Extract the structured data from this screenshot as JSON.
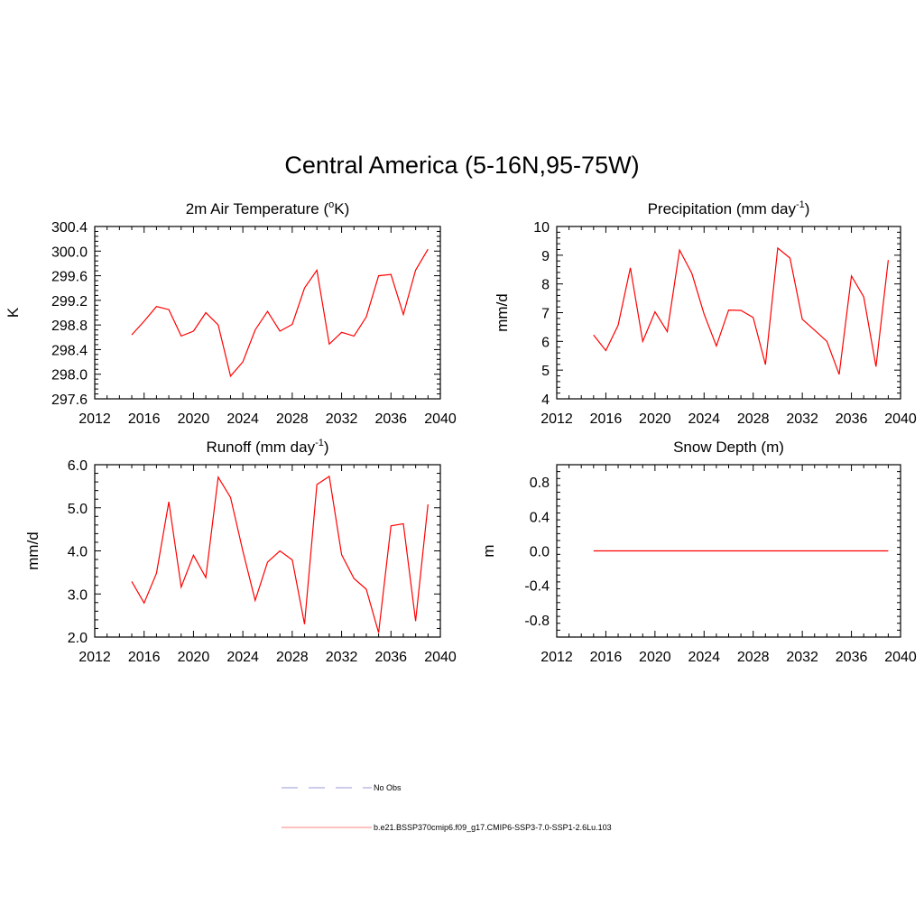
{
  "figure": {
    "title": "Central America (5-16N,95-75W)"
  },
  "legend": {
    "items": [
      {
        "label": "No Obs",
        "style": "dashed",
        "color": "#9a9ad8"
      },
      {
        "label": "b.e21.BSSP370cmip6.f09_g17.CMIP6-SSP3-7.0-SSP1-2.6Lu.103",
        "style": "solid",
        "color": "#ff0000"
      }
    ]
  },
  "colors": {
    "series": "#ff0000",
    "axis": "#000000"
  },
  "chart_data": [
    {
      "type": "line",
      "title": "2m Air Temperature (°K)",
      "ylabel": "K",
      "xlim": [
        2012,
        2040
      ],
      "ylim": [
        297.6,
        300.4
      ],
      "xticks": [
        "2012",
        "2016",
        "2020",
        "2024",
        "2028",
        "2032",
        "2036",
        "2040"
      ],
      "yticks": [
        "297.6",
        "298.0",
        "298.4",
        "298.8",
        "299.2",
        "299.6",
        "300.0",
        "300.4"
      ],
      "x": [
        2015,
        2016,
        2017,
        2018,
        2019,
        2020,
        2021,
        2022,
        2023,
        2024,
        2025,
        2026,
        2027,
        2028,
        2029,
        2030,
        2031,
        2032,
        2033,
        2034,
        2035,
        2036,
        2037,
        2038,
        2039
      ],
      "series": [
        {
          "name": "b.e21.BSSP370cmip6.f09_g17.CMIP6-SSP3-7.0-SSP1-2.6Lu.103",
          "values": [
            298.64,
            298.86,
            299.1,
            299.05,
            298.62,
            298.7,
            299.0,
            298.8,
            297.97,
            298.2,
            298.72,
            299.02,
            298.7,
            298.81,
            299.4,
            299.69,
            298.49,
            298.68,
            298.62,
            298.93,
            299.6,
            299.62,
            298.97,
            299.69,
            300.03
          ]
        }
      ]
    },
    {
      "type": "line",
      "title": "Precipitation (mm day-1)",
      "ylabel": "mm/d",
      "xlim": [
        2012,
        2040
      ],
      "ylim": [
        4,
        10
      ],
      "xticks": [
        "2012",
        "2016",
        "2020",
        "2024",
        "2028",
        "2032",
        "2036",
        "2040"
      ],
      "yticks": [
        "4",
        "5",
        "6",
        "7",
        "8",
        "9",
        "10"
      ],
      "x": [
        2015,
        2016,
        2017,
        2018,
        2019,
        2020,
        2021,
        2022,
        2023,
        2024,
        2025,
        2026,
        2027,
        2028,
        2029,
        2030,
        2031,
        2032,
        2033,
        2034,
        2035,
        2036,
        2037,
        2038,
        2039
      ],
      "series": [
        {
          "name": "b.e21.BSSP370cmip6.f09_g17.CMIP6-SSP3-7.0-SSP1-2.6Lu.103",
          "values": [
            6.22,
            5.68,
            6.56,
            8.56,
            6.0,
            7.03,
            6.34,
            9.18,
            8.37,
            6.95,
            5.84,
            7.09,
            7.08,
            6.83,
            5.19,
            9.25,
            8.9,
            6.77,
            6.39,
            6.0,
            4.85,
            8.28,
            7.55,
            5.12,
            8.83
          ]
        }
      ]
    },
    {
      "type": "line",
      "title": "Runoff (mm day-1)",
      "ylabel": "mm/d",
      "xlim": [
        2012,
        2040
      ],
      "ylim": [
        2.0,
        6.0
      ],
      "xticks": [
        "2012",
        "2016",
        "2020",
        "2024",
        "2028",
        "2032",
        "2036",
        "2040"
      ],
      "yticks": [
        "2.0",
        "3.0",
        "4.0",
        "5.0",
        "6.0"
      ],
      "x": [
        2015,
        2016,
        2017,
        2018,
        2019,
        2020,
        2021,
        2022,
        2023,
        2024,
        2025,
        2026,
        2027,
        2028,
        2029,
        2030,
        2031,
        2032,
        2033,
        2034,
        2035,
        2036,
        2037,
        2038,
        2039
      ],
      "series": [
        {
          "name": "b.e21.BSSP370cmip6.f09_g17.CMIP6-SSP3-7.0-SSP1-2.6Lu.103",
          "values": [
            3.29,
            2.79,
            3.48,
            5.14,
            3.16,
            3.9,
            3.38,
            5.71,
            5.24,
            4.0,
            2.85,
            3.74,
            4.0,
            3.79,
            2.3,
            5.54,
            5.73,
            3.91,
            3.36,
            3.11,
            2.1,
            4.58,
            4.63,
            2.37,
            5.08
          ]
        }
      ]
    },
    {
      "type": "line",
      "title": "Snow Depth (m)",
      "ylabel": "m",
      "xlim": [
        2012,
        2040
      ],
      "ylim": [
        -1.0,
        1.0
      ],
      "xticks": [
        "2012",
        "2016",
        "2020",
        "2024",
        "2028",
        "2032",
        "2036",
        "2040"
      ],
      "yticks": [
        "-0.8",
        "-0.4",
        "0.0",
        "0.4",
        "0.8"
      ],
      "x": [
        2015,
        2016,
        2017,
        2018,
        2019,
        2020,
        2021,
        2022,
        2023,
        2024,
        2025,
        2026,
        2027,
        2028,
        2029,
        2030,
        2031,
        2032,
        2033,
        2034,
        2035,
        2036,
        2037,
        2038,
        2039
      ],
      "series": [
        {
          "name": "b.e21.BSSP370cmip6.f09_g17.CMIP6-SSP3-7.0-SSP1-2.6Lu.103",
          "values": [
            0,
            0,
            0,
            0,
            0,
            0,
            0,
            0,
            0,
            0,
            0,
            0,
            0,
            0,
            0,
            0,
            0,
            0,
            0,
            0,
            0,
            0,
            0,
            0,
            0
          ]
        }
      ]
    }
  ]
}
